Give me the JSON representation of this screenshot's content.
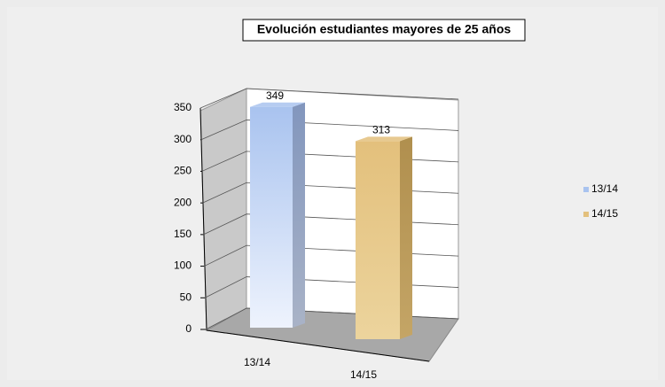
{
  "chart_data": {
    "type": "bar",
    "title": "Evolución estudiantes mayores de 25 años",
    "categories": [
      "13/14",
      "14/15"
    ],
    "values": [
      349,
      313
    ],
    "colors": [
      "#a9c3ef",
      "#e3c07c"
    ],
    "ylim": [
      0,
      350
    ],
    "yticks": [
      0,
      50,
      100,
      150,
      200,
      250,
      300,
      350
    ],
    "grid": true,
    "legend": "right"
  }
}
